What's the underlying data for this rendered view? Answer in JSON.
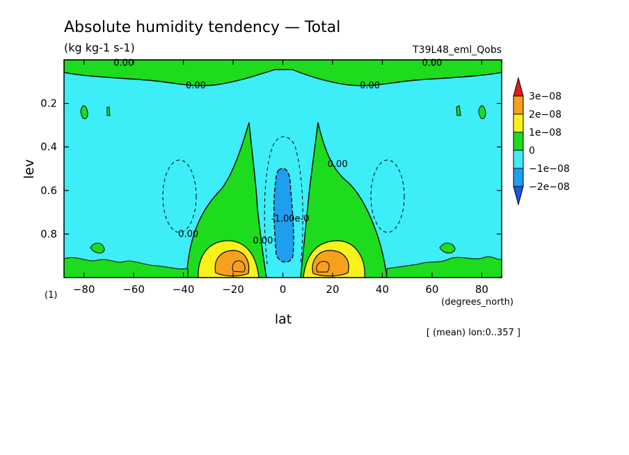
{
  "figure": {
    "title": "Absolute humidity tendency — Total",
    "units": "(kg kg-1 s-1)",
    "run": "T39L48_eml_Qobs",
    "panel_tag": "(1)",
    "xunit": "(degrees_north)",
    "mean_note": "[ (mean) lon:0..357 ]"
  },
  "chart_data": {
    "type": "heatmap",
    "title": "Absolute humidity tendency — Total",
    "xlabel": "lat",
    "ylabel": "lev",
    "xlim": [
      -88,
      88
    ],
    "ylim": [
      1.0,
      0.0
    ],
    "xticks": [
      -80,
      -60,
      -40,
      -20,
      0,
      20,
      40,
      60,
      80
    ],
    "xtick_labels": [
      "−80",
      "−60",
      "−40",
      "−20",
      "0",
      "20",
      "40",
      "60",
      "80"
    ],
    "yticks": [
      0.2,
      0.4,
      0.6,
      0.8
    ],
    "ytick_labels": [
      "0.2",
      "0.4",
      "0.6",
      "0.8"
    ],
    "grid": false,
    "colorbar": {
      "placement": "right",
      "labels": [
        "3e−08",
        "2e−08",
        "1e−08",
        "0",
        "−1e−08",
        "−2e−08"
      ],
      "colors": [
        "#e51a1a",
        "#f7a01e",
        "#f8f21a",
        "#1ddc1d",
        "#3dedf7",
        "#1e9eee",
        "#1a56e8"
      ]
    },
    "contour_labels": [
      {
        "text": "0.00",
        "x": -64,
        "y": 0.015
      },
      {
        "text": "0.00",
        "x": 60,
        "y": 0.015
      },
      {
        "text": "0.00",
        "x": -35,
        "y": 0.118
      },
      {
        "text": "0.00",
        "x": 35,
        "y": 0.118
      },
      {
        "text": "0.00",
        "x": 22,
        "y": 0.48
      },
      {
        "text": "0.00",
        "x": -38,
        "y": 0.8
      },
      {
        "text": "0.00",
        "x": -8,
        "y": 0.83
      },
      {
        "text": "-1.00e-0",
        "x": 3,
        "y": 0.73
      }
    ],
    "regions": [
      {
        "name": "upper-green-band",
        "level": "0 to 1e-08",
        "color": "#1ddc1d"
      },
      {
        "name": "subtropical-surface-max",
        "level": "2e-08 to 3e-08",
        "x": [
          -18,
          22
        ],
        "y": 0.93,
        "color": "#f7a01e"
      },
      {
        "name": "equatorial-min",
        "level": "-2e-08 to -1e-08",
        "x": 0,
        "y": [
          0.5,
          0.9
        ],
        "color": "#1e9eee"
      }
    ]
  }
}
